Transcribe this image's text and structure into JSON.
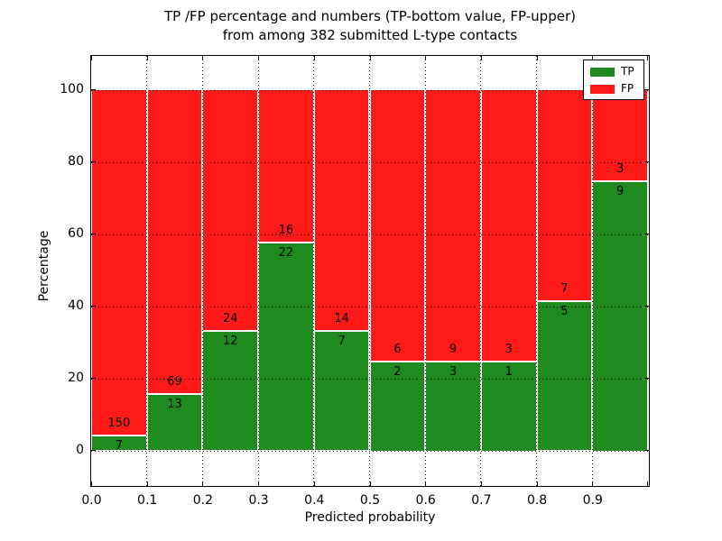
{
  "title": {
    "line1": "TP /FP percentage and numbers (TP-bottom value, FP-upper)",
    "line2": "from among 382 submitted L-type contacts"
  },
  "axes": {
    "xlabel": "Predicted probability",
    "ylabel": "Percentage",
    "yticklabels": [
      "0",
      "20",
      "40",
      "60",
      "80",
      "100"
    ],
    "ytick_values": [
      0,
      20,
      40,
      60,
      80,
      100
    ],
    "xticklabels": [
      "0.0",
      "0.1",
      "0.2",
      "0.3",
      "0.4",
      "0.5",
      "0.6",
      "0.7",
      "0.8",
      "0.9"
    ],
    "xtick_values": [
      0.0,
      0.1,
      0.2,
      0.3,
      0.4,
      0.5,
      0.6,
      0.7,
      0.8,
      0.9
    ]
  },
  "legend": {
    "items": [
      {
        "label": "TP",
        "color": "#1f8b1f"
      },
      {
        "label": "FP",
        "color": "#ff1a1a"
      }
    ]
  },
  "colors": {
    "tp": "#1f8b1f",
    "fp": "#ff1a1a",
    "grid": "#000000",
    "background": "#ffffff"
  },
  "chart_data": {
    "type": "bar",
    "stacked": true,
    "normalized": "each bin scaled to 100%",
    "title": "TP /FP percentage and numbers (TP-bottom value, FP-upper) from among 382 submitted L-type contacts",
    "xlabel": "Predicted probability",
    "ylabel": "Percentage",
    "xlim": [
      0.0,
      1.0
    ],
    "ylim": [
      -10,
      110
    ],
    "grid": true,
    "legend_position": "upper right",
    "total_contacts": 382,
    "bins": [
      "0.0-0.1",
      "0.1-0.2",
      "0.2-0.3",
      "0.3-0.4",
      "0.4-0.5",
      "0.5-0.6",
      "0.6-0.7",
      "0.7-0.8",
      "0.8-0.9",
      "0.9-1.0"
    ],
    "series": [
      {
        "name": "TP",
        "color": "#1f8b1f",
        "counts": [
          7,
          13,
          12,
          22,
          7,
          2,
          3,
          1,
          5,
          9
        ]
      },
      {
        "name": "FP",
        "color": "#ff1a1a",
        "counts": [
          150,
          69,
          24,
          16,
          14,
          6,
          9,
          3,
          7,
          3
        ]
      }
    ],
    "tp_percent": [
      4.46,
      15.85,
      33.33,
      57.89,
      33.33,
      25.0,
      25.0,
      25.0,
      41.67,
      75.0
    ]
  }
}
